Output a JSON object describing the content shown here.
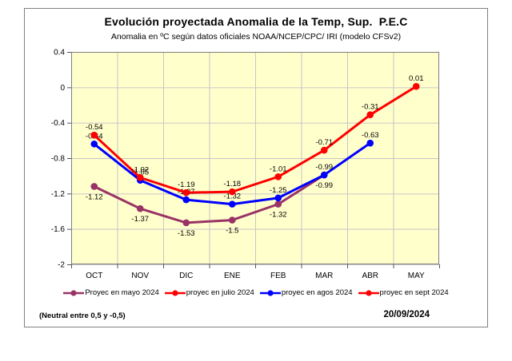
{
  "window": {
    "background": "#ffffff",
    "frame_border_color": "#808080"
  },
  "chart": {
    "title": "Evolución proyectada Anomalia de la Temp, Sup.  P.E.C",
    "subtitle": "Anomalia en ºC según datos oficiales NOAA/NCEP/CPC/ IRI (modelo CFSv2)"
  },
  "chart_data": {
    "type": "line",
    "categories": [
      "OCT",
      "NOV",
      "DIC",
      "ENE",
      "FEB",
      "MAR",
      "ABR",
      "MAY"
    ],
    "ylim": [
      -2,
      0.4
    ],
    "y_tick_labels": [
      "0.4",
      "0",
      "-0.4",
      "-0.8",
      "-1.2",
      "-1.6",
      "-2"
    ],
    "y_tick_values": [
      0.4,
      0,
      -0.4,
      -0.8,
      -1.2,
      -1.6,
      -2
    ],
    "grid": true,
    "plot_background": "#FFFFCC",
    "gridline_color": "#C6C6C6",
    "plot_border_color": "#7F7F7F",
    "legend_position": "bottom",
    "series": [
      {
        "name": "Proyec en mayo 2024",
        "color": "#993366",
        "label_position": "below",
        "values": [
          -1.12,
          -1.37,
          -1.53,
          -1.5,
          -1.32,
          -0.99,
          null,
          null
        ],
        "labels": [
          "-1.12",
          "-1.37",
          "-1.53",
          "-1.5",
          "-1.32",
          "-0.99",
          null,
          null
        ]
      },
      {
        "name": "proyec en julio 2024",
        "color": "#FF0000",
        "label_position": "above",
        "values": [
          null,
          null,
          null,
          null,
          null,
          null,
          null,
          null
        ],
        "labels": [
          null,
          null,
          null,
          null,
          null,
          null,
          null,
          null
        ],
        "note": "line not separately visible in the pixels; coincides with the sept 2024 line"
      },
      {
        "name": "proyec en agos 2024",
        "color": "#0000FF",
        "label_position": "above",
        "values": [
          -0.64,
          -1.05,
          -1.27,
          -1.32,
          -1.25,
          -0.99,
          -0.63,
          null
        ],
        "labels": [
          "-0.64",
          "-1.05",
          "-1.27",
          "-1.32",
          "-1.25",
          "-0.99",
          "-0.63",
          null
        ]
      },
      {
        "name": "proyec en sept 2024",
        "color": "#FF0000",
        "label_position": "above",
        "values": [
          -0.54,
          -1.02,
          -1.19,
          -1.18,
          -1.01,
          -0.71,
          -0.31,
          0.01
        ],
        "labels": [
          "-0.54",
          "-1.02",
          "-1.19",
          "-1.18",
          "-1.01",
          "-0.71",
          "-0.31",
          "0.01"
        ]
      }
    ]
  },
  "footer": {
    "neutral_note": "(Neutral entre 0,5 y -0,5)",
    "date": "20/09/2024"
  }
}
